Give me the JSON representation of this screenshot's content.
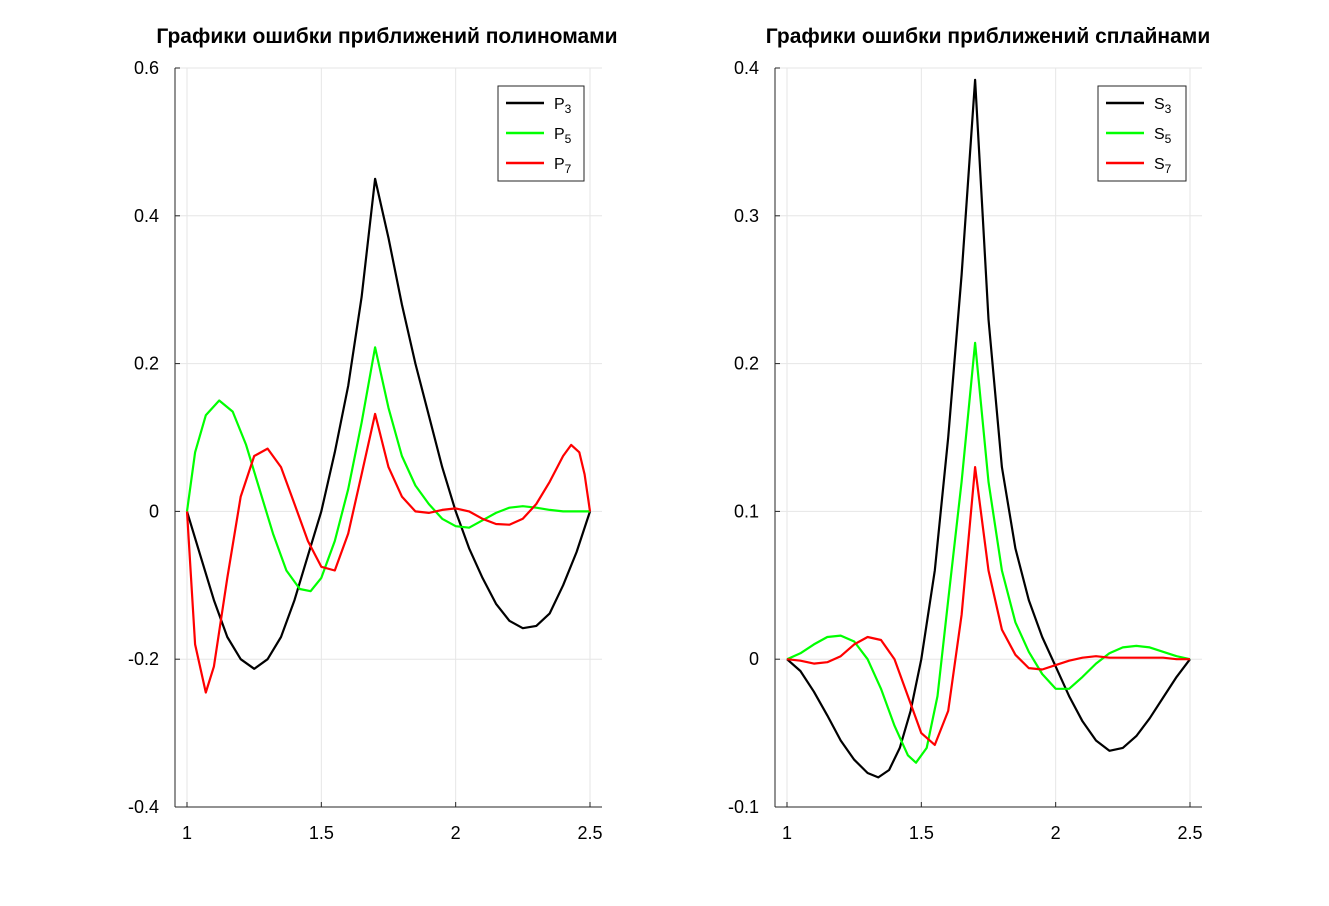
{
  "chart_data": [
    {
      "type": "line",
      "title": "Графики ошибки приближений полиномами",
      "xlabel": "",
      "ylabel": "",
      "xlim": [
        1,
        2.5
      ],
      "ylim": [
        -0.4,
        0.6
      ],
      "x_ticks": [
        1,
        1.5,
        2,
        2.5
      ],
      "x_tick_labels": [
        "1",
        "1.5",
        "2",
        "2.5"
      ],
      "y_ticks": [
        -0.4,
        -0.2,
        0,
        0.2,
        0.4,
        0.6
      ],
      "y_tick_labels": [
        "-0.4",
        "-0.2",
        "0",
        "0.2",
        "0.4",
        "0.6"
      ],
      "grid": true,
      "legend_position": "top-right",
      "series": [
        {
          "name": "P3",
          "legend_base": "P",
          "legend_sub": "3",
          "color": "#000000",
          "points": [
            [
              1.0,
              0.0
            ],
            [
              1.05,
              -0.06
            ],
            [
              1.1,
              -0.12
            ],
            [
              1.15,
              -0.17
            ],
            [
              1.2,
              -0.2
            ],
            [
              1.25,
              -0.213
            ],
            [
              1.3,
              -0.2
            ],
            [
              1.35,
              -0.17
            ],
            [
              1.4,
              -0.12
            ],
            [
              1.45,
              -0.06
            ],
            [
              1.5,
              0.0
            ],
            [
              1.55,
              0.08
            ],
            [
              1.6,
              0.17
            ],
            [
              1.65,
              0.29
            ],
            [
              1.7,
              0.45
            ],
            [
              1.75,
              0.37
            ],
            [
              1.8,
              0.28
            ],
            [
              1.85,
              0.2
            ],
            [
              1.9,
              0.13
            ],
            [
              1.95,
              0.06
            ],
            [
              2.0,
              0.0
            ],
            [
              2.05,
              -0.05
            ],
            [
              2.1,
              -0.09
            ],
            [
              2.15,
              -0.125
            ],
            [
              2.2,
              -0.148
            ],
            [
              2.25,
              -0.158
            ],
            [
              2.3,
              -0.155
            ],
            [
              2.35,
              -0.138
            ],
            [
              2.4,
              -0.1
            ],
            [
              2.45,
              -0.055
            ],
            [
              2.5,
              0.0
            ]
          ]
        },
        {
          "name": "P5",
          "legend_base": "P",
          "legend_sub": "5",
          "color": "#00ff00",
          "points": [
            [
              1.0,
              0.0
            ],
            [
              1.03,
              0.08
            ],
            [
              1.07,
              0.13
            ],
            [
              1.12,
              0.15
            ],
            [
              1.17,
              0.135
            ],
            [
              1.22,
              0.09
            ],
            [
              1.27,
              0.03
            ],
            [
              1.32,
              -0.03
            ],
            [
              1.37,
              -0.08
            ],
            [
              1.42,
              -0.105
            ],
            [
              1.46,
              -0.108
            ],
            [
              1.5,
              -0.09
            ],
            [
              1.55,
              -0.04
            ],
            [
              1.6,
              0.03
            ],
            [
              1.65,
              0.12
            ],
            [
              1.7,
              0.222
            ],
            [
              1.75,
              0.14
            ],
            [
              1.8,
              0.075
            ],
            [
              1.85,
              0.035
            ],
            [
              1.9,
              0.01
            ],
            [
              1.95,
              -0.01
            ],
            [
              2.0,
              -0.02
            ],
            [
              2.05,
              -0.022
            ],
            [
              2.1,
              -0.012
            ],
            [
              2.15,
              -0.002
            ],
            [
              2.2,
              0.005
            ],
            [
              2.25,
              0.007
            ],
            [
              2.3,
              0.005
            ],
            [
              2.35,
              0.002
            ],
            [
              2.4,
              0.0
            ],
            [
              2.45,
              0.0
            ],
            [
              2.5,
              0.0
            ]
          ]
        },
        {
          "name": "P7",
          "legend_base": "P",
          "legend_sub": "7",
          "color": "#ff0000",
          "points": [
            [
              1.0,
              0.0
            ],
            [
              1.03,
              -0.18
            ],
            [
              1.07,
              -0.245
            ],
            [
              1.1,
              -0.21
            ],
            [
              1.15,
              -0.09
            ],
            [
              1.2,
              0.02
            ],
            [
              1.25,
              0.075
            ],
            [
              1.3,
              0.085
            ],
            [
              1.35,
              0.06
            ],
            [
              1.4,
              0.01
            ],
            [
              1.45,
              -0.04
            ],
            [
              1.5,
              -0.075
            ],
            [
              1.55,
              -0.08
            ],
            [
              1.6,
              -0.03
            ],
            [
              1.65,
              0.05
            ],
            [
              1.7,
              0.132
            ],
            [
              1.75,
              0.06
            ],
            [
              1.8,
              0.02
            ],
            [
              1.85,
              0.0
            ],
            [
              1.9,
              -0.002
            ],
            [
              1.95,
              0.002
            ],
            [
              2.0,
              0.004
            ],
            [
              2.05,
              0.0
            ],
            [
              2.1,
              -0.01
            ],
            [
              2.15,
              -0.017
            ],
            [
              2.2,
              -0.018
            ],
            [
              2.25,
              -0.01
            ],
            [
              2.3,
              0.01
            ],
            [
              2.35,
              0.04
            ],
            [
              2.4,
              0.075
            ],
            [
              2.43,
              0.09
            ],
            [
              2.46,
              0.08
            ],
            [
              2.48,
              0.05
            ],
            [
              2.5,
              0.0
            ]
          ]
        }
      ]
    },
    {
      "type": "line",
      "title": "Графики ошибки приближений сплайнами",
      "xlabel": "",
      "ylabel": "",
      "xlim": [
        1,
        2.5
      ],
      "ylim": [
        -0.1,
        0.4
      ],
      "x_ticks": [
        1,
        1.5,
        2,
        2.5
      ],
      "x_tick_labels": [
        "1",
        "1.5",
        "2",
        "2.5"
      ],
      "y_ticks": [
        -0.1,
        0,
        0.1,
        0.2,
        0.3,
        0.4
      ],
      "y_tick_labels": [
        "-0.1",
        "0",
        "0.1",
        "0.2",
        "0.3",
        "0.4"
      ],
      "grid": true,
      "legend_position": "top-right",
      "series": [
        {
          "name": "S3",
          "legend_base": "S",
          "legend_sub": "3",
          "color": "#000000",
          "points": [
            [
              1.0,
              0.0
            ],
            [
              1.05,
              -0.008
            ],
            [
              1.1,
              -0.022
            ],
            [
              1.15,
              -0.038
            ],
            [
              1.2,
              -0.055
            ],
            [
              1.25,
              -0.068
            ],
            [
              1.3,
              -0.077
            ],
            [
              1.34,
              -0.08
            ],
            [
              1.38,
              -0.075
            ],
            [
              1.42,
              -0.06
            ],
            [
              1.46,
              -0.035
            ],
            [
              1.5,
              0.0
            ],
            [
              1.55,
              0.06
            ],
            [
              1.6,
              0.15
            ],
            [
              1.65,
              0.26
            ],
            [
              1.7,
              0.392
            ],
            [
              1.75,
              0.23
            ],
            [
              1.8,
              0.13
            ],
            [
              1.85,
              0.075
            ],
            [
              1.9,
              0.04
            ],
            [
              1.95,
              0.015
            ],
            [
              2.0,
              -0.005
            ],
            [
              2.05,
              -0.025
            ],
            [
              2.1,
              -0.042
            ],
            [
              2.15,
              -0.055
            ],
            [
              2.2,
              -0.062
            ],
            [
              2.25,
              -0.06
            ],
            [
              2.3,
              -0.052
            ],
            [
              2.35,
              -0.04
            ],
            [
              2.4,
              -0.026
            ],
            [
              2.45,
              -0.012
            ],
            [
              2.5,
              0.0
            ]
          ]
        },
        {
          "name": "S5",
          "legend_base": "S",
          "legend_sub": "5",
          "color": "#00ff00",
          "points": [
            [
              1.0,
              0.0
            ],
            [
              1.05,
              0.004
            ],
            [
              1.1,
              0.01
            ],
            [
              1.15,
              0.015
            ],
            [
              1.2,
              0.016
            ],
            [
              1.25,
              0.012
            ],
            [
              1.3,
              0.0
            ],
            [
              1.35,
              -0.02
            ],
            [
              1.4,
              -0.045
            ],
            [
              1.45,
              -0.065
            ],
            [
              1.48,
              -0.07
            ],
            [
              1.52,
              -0.06
            ],
            [
              1.56,
              -0.025
            ],
            [
              1.6,
              0.04
            ],
            [
              1.65,
              0.12
            ],
            [
              1.7,
              0.214
            ],
            [
              1.75,
              0.12
            ],
            [
              1.8,
              0.06
            ],
            [
              1.85,
              0.025
            ],
            [
              1.9,
              0.005
            ],
            [
              1.95,
              -0.01
            ],
            [
              2.0,
              -0.02
            ],
            [
              2.05,
              -0.02
            ],
            [
              2.1,
              -0.012
            ],
            [
              2.15,
              -0.003
            ],
            [
              2.2,
              0.004
            ],
            [
              2.25,
              0.008
            ],
            [
              2.3,
              0.009
            ],
            [
              2.35,
              0.008
            ],
            [
              2.4,
              0.005
            ],
            [
              2.45,
              0.002
            ],
            [
              2.5,
              0.0
            ]
          ]
        },
        {
          "name": "S7",
          "legend_base": "S",
          "legend_sub": "7",
          "color": "#ff0000",
          "points": [
            [
              1.0,
              0.0
            ],
            [
              1.05,
              -0.001
            ],
            [
              1.1,
              -0.003
            ],
            [
              1.15,
              -0.002
            ],
            [
              1.2,
              0.002
            ],
            [
              1.25,
              0.01
            ],
            [
              1.3,
              0.015
            ],
            [
              1.35,
              0.013
            ],
            [
              1.4,
              0.0
            ],
            [
              1.45,
              -0.025
            ],
            [
              1.5,
              -0.05
            ],
            [
              1.55,
              -0.058
            ],
            [
              1.6,
              -0.035
            ],
            [
              1.65,
              0.03
            ],
            [
              1.7,
              0.13
            ],
            [
              1.75,
              0.06
            ],
            [
              1.8,
              0.02
            ],
            [
              1.85,
              0.003
            ],
            [
              1.9,
              -0.006
            ],
            [
              1.95,
              -0.007
            ],
            [
              2.0,
              -0.004
            ],
            [
              2.05,
              -0.001
            ],
            [
              2.1,
              0.001
            ],
            [
              2.15,
              0.002
            ],
            [
              2.2,
              0.001
            ],
            [
              2.25,
              0.001
            ],
            [
              2.3,
              0.001
            ],
            [
              2.35,
              0.001
            ],
            [
              2.4,
              0.001
            ],
            [
              2.45,
              0.0
            ],
            [
              2.5,
              0.0
            ]
          ]
        }
      ]
    }
  ]
}
